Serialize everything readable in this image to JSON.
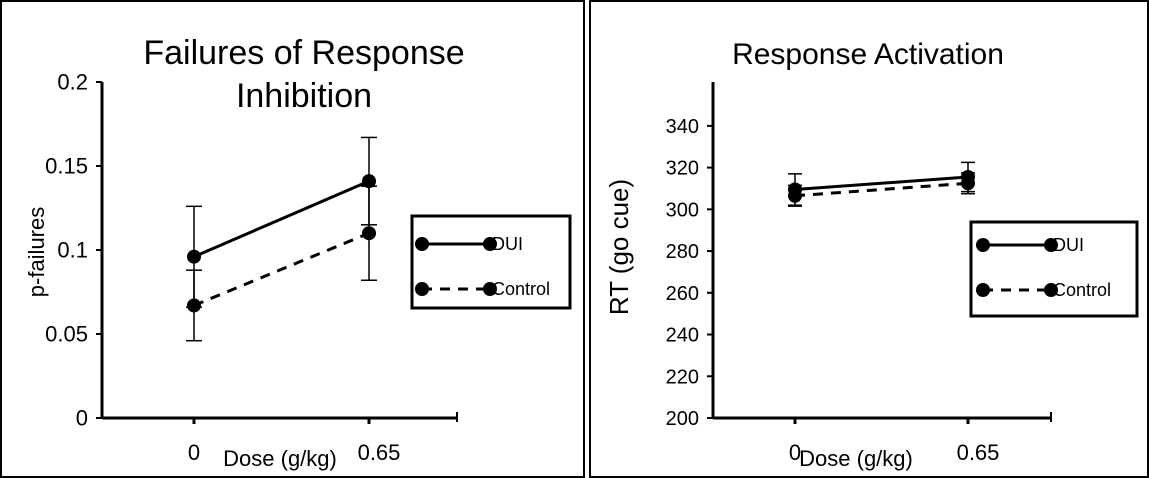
{
  "chart_data": [
    {
      "type": "line",
      "title": "Failures of Response Inhibition",
      "xlabel": "Dose (g/kg)",
      "ylabel": "p-failures",
      "categories": [
        "0",
        "0.65"
      ],
      "ylim": [
        0,
        0.2
      ],
      "yticks": [
        "0",
        "0.05",
        "0.1",
        "0.15",
        "0.2"
      ],
      "legend_position": "right",
      "grid": false,
      "series": [
        {
          "name": "DUI",
          "values": [
            0.096,
            0.141
          ],
          "error": [
            0.03,
            0.026
          ],
          "line_style": "solid",
          "color": "#000000"
        },
        {
          "name": "Control",
          "values": [
            0.067,
            0.11
          ],
          "error": [
            0.021,
            0.028
          ],
          "line_style": "dashed",
          "color": "#000000"
        }
      ]
    },
    {
      "type": "line",
      "title": "Response Activation",
      "xlabel": "Dose (g/kg)",
      "ylabel": "RT (go cue)",
      "categories": [
        "0",
        "0.65"
      ],
      "ylim": [
        200,
        350
      ],
      "yticks": [
        "200",
        "220",
        "240",
        "260",
        "280",
        "300",
        "320",
        "340"
      ],
      "legend_position": "right",
      "grid": false,
      "series": [
        {
          "name": "DUI",
          "values": [
            309.5,
            315.5
          ],
          "error": [
            7.5,
            7
          ],
          "line_style": "solid",
          "color": "#000000"
        },
        {
          "name": "Control",
          "values": [
            306.5,
            312.5
          ],
          "error": [
            5,
            5
          ],
          "line_style": "dashed",
          "color": "#000000"
        }
      ]
    }
  ]
}
